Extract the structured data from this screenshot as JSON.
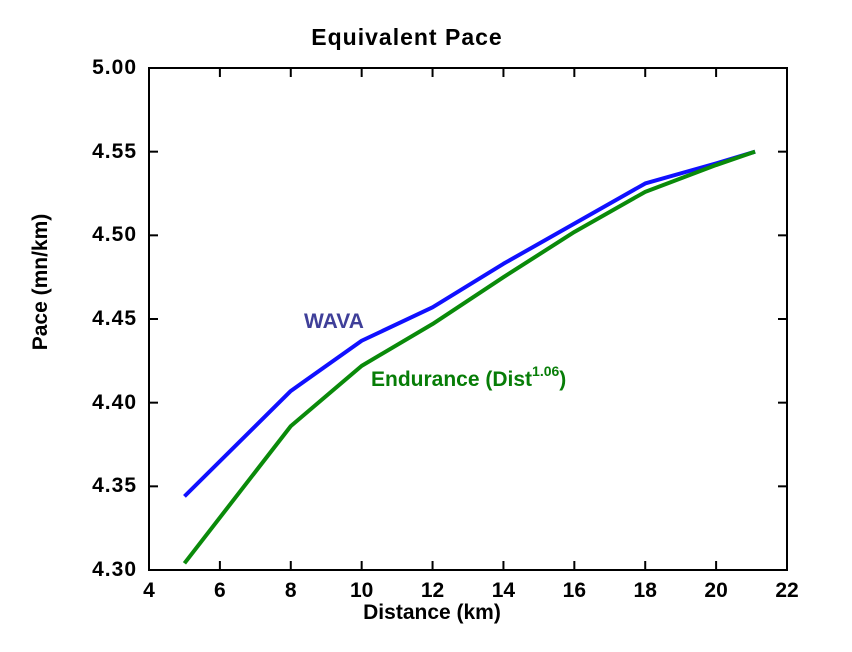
{
  "title": "Equivalent Pace",
  "axes": {
    "x_label": "Distance (km)",
    "y_label": "Pace (mn/km)"
  },
  "annotations": {
    "wava": {
      "text": "WAVA",
      "color": "#3f3f99"
    },
    "endurance": {
      "prefix": "Endurance (Dist",
      "exponent": "1.06",
      "suffix": ")",
      "color": "#077d07"
    }
  },
  "chart_data": {
    "type": "line",
    "title": "Equivalent Pace",
    "xlabel": "Distance (km)",
    "ylabel": "Pace (mn/km)",
    "xlim": [
      4,
      22
    ],
    "ylim_seconds": [
      270,
      300
    ],
    "x_ticks": [
      4,
      6,
      8,
      10,
      12,
      14,
      16,
      18,
      20,
      22
    ],
    "x_tick_labels": [
      "4",
      "6",
      "8",
      "10",
      "12",
      "14",
      "16",
      "18",
      "20",
      "22"
    ],
    "y_ticks_seconds": [
      270,
      275,
      280,
      285,
      290,
      295,
      300
    ],
    "y_tick_labels": [
      "4.30",
      "4.35",
      "4.40",
      "4.45",
      "4.50",
      "4.55",
      "5.00"
    ],
    "x": [
      5,
      8,
      10,
      12,
      14,
      16,
      18,
      20,
      21.1
    ],
    "series": [
      {
        "name": "WAVA",
        "color": "#1010ff",
        "pace_seconds": [
          274.4,
          280.7,
          283.7,
          285.7,
          288.3,
          290.7,
          293.1,
          294.3,
          295.0
        ]
      },
      {
        "name": "Endurance (Dist^1.06)",
        "color": "#0a8a0a",
        "pace_seconds": [
          270.4,
          278.6,
          282.2,
          284.7,
          287.5,
          290.2,
          292.6,
          294.2,
          295.0
        ]
      }
    ],
    "grid": false,
    "legend": "inline-labels",
    "frame": "box-with-inward-ticks"
  }
}
